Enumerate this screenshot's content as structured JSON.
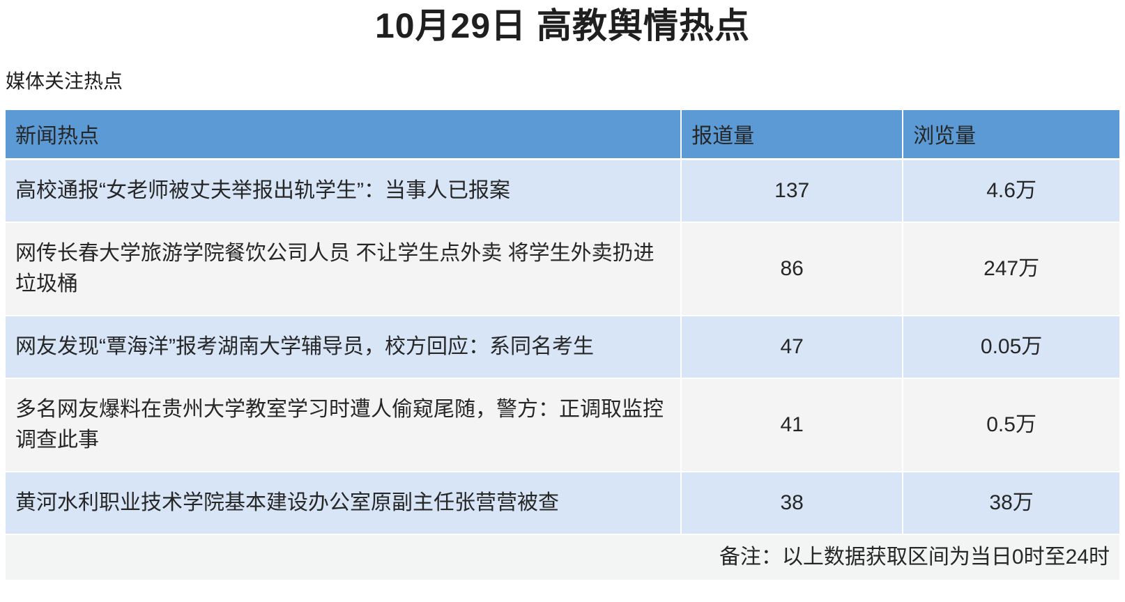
{
  "page": {
    "title": "10月29日 高教舆情热点",
    "section_label": "媒体关注热点",
    "footnote": "备注：以上数据获取区间为当日0时至24时"
  },
  "colors": {
    "header_bg": "#5b9ad5",
    "row_blue_bg": "#d7e5f7",
    "row_gray_bg": "#f4f4f4",
    "footer_bg": "#f3f4f4",
    "text": "#262626",
    "divider": "#ffffff"
  },
  "table": {
    "columns": [
      {
        "label": "新闻热点"
      },
      {
        "label": "报道量"
      },
      {
        "label": "浏览量"
      }
    ],
    "rows": [
      {
        "topic": "高校通报“女老师被丈夫举报出轨学生”：当事人已报案",
        "reports": "137",
        "views": "4.6万"
      },
      {
        "topic": "网传长春大学旅游学院餐饮公司人员 不让学生点外卖 将学生外卖扔进垃圾桶",
        "reports": "86",
        "views": "247万"
      },
      {
        "topic": "网友发现“覃海洋”报考湖南大学辅导员，校方回应：系同名考生",
        "reports": "47",
        "views": "0.05万"
      },
      {
        "topic": "多名网友爆料在贵州大学教室学习时遭人偷窥尾随，警方：正调取监控调查此事",
        "reports": "41",
        "views": "0.5万"
      },
      {
        "topic": "黄河水利职业技术学院基本建设办公室原副主任张营营被查",
        "reports": "38",
        "views": "38万"
      }
    ]
  }
}
